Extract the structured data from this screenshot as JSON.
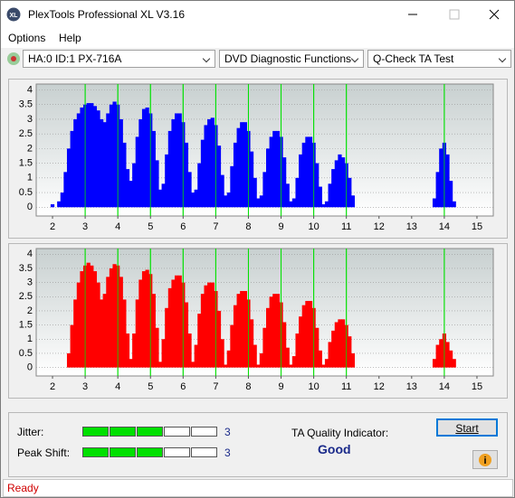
{
  "window": {
    "title": "PlexTools Professional XL V3.16"
  },
  "menu": [
    "Options",
    "Help"
  ],
  "toolbar": {
    "drive": "HA:0 ID:1  PX-716A",
    "function": "DVD Diagnostic Functions",
    "test": "Q-Check TA Test"
  },
  "charts": [
    {
      "type": "bar",
      "color": "#0000ff",
      "grid": true,
      "xlim": [
        1.5,
        15.5
      ],
      "ylim": [
        -0.3,
        4.2
      ],
      "xticks": [
        2,
        3,
        4,
        5,
        6,
        7,
        8,
        9,
        10,
        11,
        12,
        13,
        14,
        15
      ],
      "yticks": [
        0,
        0.5,
        1,
        1.5,
        2,
        2.5,
        3,
        3.5,
        4
      ],
      "reference_lines": [
        3,
        4,
        5,
        6,
        7,
        8,
        9,
        10,
        11,
        14
      ],
      "reference_color": "#00e000",
      "x": [
        1.9,
        2.0,
        2.1,
        2.2,
        2.3,
        2.4,
        2.5,
        2.6,
        2.7,
        2.8,
        2.9,
        3.0,
        3.1,
        3.2,
        3.3,
        3.4,
        3.5,
        3.6,
        3.7,
        3.8,
        3.9,
        4.0,
        4.1,
        4.2,
        4.3,
        4.4,
        4.5,
        4.6,
        4.7,
        4.8,
        4.9,
        5.0,
        5.1,
        5.2,
        5.3,
        5.4,
        5.5,
        5.6,
        5.7,
        5.8,
        5.9,
        6.0,
        6.1,
        6.2,
        6.3,
        6.4,
        6.5,
        6.6,
        6.7,
        6.8,
        6.9,
        7.0,
        7.1,
        7.2,
        7.3,
        7.4,
        7.5,
        7.6,
        7.7,
        7.8,
        7.9,
        8.0,
        8.1,
        8.2,
        8.3,
        8.4,
        8.5,
        8.6,
        8.7,
        8.8,
        8.9,
        9.0,
        9.1,
        9.2,
        9.3,
        9.4,
        9.5,
        9.6,
        9.7,
        9.8,
        9.9,
        10.0,
        10.1,
        10.2,
        10.3,
        10.4,
        10.5,
        10.6,
        10.7,
        10.8,
        10.9,
        11.0,
        11.1,
        11.2,
        11.3,
        11.4,
        11.5,
        11.6,
        11.7,
        11.8,
        11.9,
        12.0,
        12.1,
        12.2,
        12.3,
        12.4,
        12.5,
        12.6,
        12.7,
        12.8,
        12.9,
        13.0,
        13.1,
        13.2,
        13.3,
        13.4,
        13.5,
        13.6,
        13.7,
        13.8,
        13.9,
        14.0,
        14.1,
        14.2,
        14.3,
        14.4,
        14.5
      ],
      "values": [
        0,
        0.1,
        0,
        0.2,
        0.5,
        1.2,
        2.0,
        2.6,
        3.0,
        3.2,
        3.4,
        3.5,
        3.55,
        3.55,
        3.45,
        3.3,
        3.0,
        2.9,
        3.2,
        3.5,
        3.6,
        3.5,
        3.0,
        2.2,
        1.3,
        0.9,
        1.5,
        2.4,
        3.0,
        3.35,
        3.4,
        3.2,
        2.6,
        1.6,
        0.6,
        0.8,
        1.8,
        2.6,
        3.0,
        3.2,
        3.2,
        2.9,
        2.2,
        1.2,
        0.5,
        0.6,
        1.5,
        2.3,
        2.8,
        3.0,
        3.05,
        2.8,
        2.1,
        1.1,
        0.4,
        0.5,
        1.4,
        2.2,
        2.7,
        2.9,
        2.9,
        2.6,
        1.9,
        1.0,
        0.3,
        0.4,
        1.2,
        2.0,
        2.4,
        2.6,
        2.6,
        2.4,
        1.7,
        0.8,
        0.2,
        0.3,
        1.0,
        1.8,
        2.2,
        2.4,
        2.4,
        2.2,
        1.5,
        0.7,
        0.1,
        0.2,
        0.8,
        1.3,
        1.6,
        1.8,
        1.7,
        1.5,
        1.0,
        0.4,
        0,
        0,
        0,
        0,
        0,
        0,
        0,
        0,
        0,
        0,
        0,
        0,
        0,
        0,
        0,
        0,
        0,
        0,
        0,
        0,
        0,
        0,
        0,
        0,
        0.3,
        1.2,
        2.0,
        2.2,
        1.8,
        0.9,
        0.2,
        0,
        0
      ]
    },
    {
      "type": "bar",
      "color": "#ff0000",
      "grid": true,
      "xlim": [
        1.5,
        15.5
      ],
      "ylim": [
        -0.3,
        4.2
      ],
      "xticks": [
        2,
        3,
        4,
        5,
        6,
        7,
        8,
        9,
        10,
        11,
        12,
        13,
        14,
        15
      ],
      "yticks": [
        0,
        0.5,
        1,
        1.5,
        2,
        2.5,
        3,
        3.5,
        4
      ],
      "reference_lines": [
        3,
        4,
        5,
        6,
        7,
        8,
        9,
        10,
        11,
        14
      ],
      "reference_color": "#00e000",
      "x": [
        1.9,
        2.0,
        2.1,
        2.2,
        2.3,
        2.4,
        2.5,
        2.6,
        2.7,
        2.8,
        2.9,
        3.0,
        3.1,
        3.2,
        3.3,
        3.4,
        3.5,
        3.6,
        3.7,
        3.8,
        3.9,
        4.0,
        4.1,
        4.2,
        4.3,
        4.4,
        4.5,
        4.6,
        4.7,
        4.8,
        4.9,
        5.0,
        5.1,
        5.2,
        5.3,
        5.4,
        5.5,
        5.6,
        5.7,
        5.8,
        5.9,
        6.0,
        6.1,
        6.2,
        6.3,
        6.4,
        6.5,
        6.6,
        6.7,
        6.8,
        6.9,
        7.0,
        7.1,
        7.2,
        7.3,
        7.4,
        7.5,
        7.6,
        7.7,
        7.8,
        7.9,
        8.0,
        8.1,
        8.2,
        8.3,
        8.4,
        8.5,
        8.6,
        8.7,
        8.8,
        8.9,
        9.0,
        9.1,
        9.2,
        9.3,
        9.4,
        9.5,
        9.6,
        9.7,
        9.8,
        9.9,
        10.0,
        10.1,
        10.2,
        10.3,
        10.4,
        10.5,
        10.6,
        10.7,
        10.8,
        10.9,
        11.0,
        11.1,
        11.2,
        11.3,
        11.4,
        11.5,
        11.6,
        11.7,
        11.8,
        11.9,
        12.0,
        12.1,
        12.2,
        12.3,
        12.4,
        12.5,
        12.6,
        12.7,
        12.8,
        12.9,
        13.0,
        13.1,
        13.2,
        13.3,
        13.4,
        13.5,
        13.6,
        13.7,
        13.8,
        13.9,
        14.0,
        14.1,
        14.2,
        14.3,
        14.4,
        14.5
      ],
      "values": [
        0,
        0,
        0,
        0,
        0,
        0,
        0.5,
        1.5,
        2.4,
        3.0,
        3.4,
        3.6,
        3.7,
        3.6,
        3.4,
        3.0,
        2.4,
        2.6,
        3.2,
        3.5,
        3.65,
        3.6,
        3.2,
        2.4,
        1.2,
        0.3,
        1.2,
        2.4,
        3.1,
        3.4,
        3.45,
        3.3,
        2.6,
        1.4,
        0.2,
        1.0,
        2.1,
        2.8,
        3.1,
        3.25,
        3.25,
        3.0,
        2.3,
        1.2,
        0.2,
        0.8,
        1.9,
        2.6,
        2.9,
        3.0,
        3.0,
        2.7,
        2.0,
        1.0,
        0.1,
        0.6,
        1.5,
        2.2,
        2.6,
        2.7,
        2.7,
        2.4,
        1.7,
        0.8,
        0.1,
        0.5,
        1.4,
        2.1,
        2.5,
        2.6,
        2.6,
        2.3,
        1.6,
        0.7,
        0.1,
        0.4,
        1.2,
        1.8,
        2.2,
        2.35,
        2.35,
        2.1,
        1.4,
        0.6,
        0.1,
        0.3,
        0.9,
        1.3,
        1.6,
        1.7,
        1.7,
        1.5,
        1.1,
        0.5,
        0,
        0,
        0,
        0,
        0,
        0,
        0,
        0,
        0,
        0,
        0,
        0,
        0,
        0,
        0,
        0,
        0,
        0,
        0,
        0,
        0,
        0,
        0,
        0,
        0.3,
        0.8,
        1.0,
        1.2,
        0.9,
        0.6,
        0.3,
        0,
        0
      ]
    }
  ],
  "results": {
    "jitter": {
      "label": "Jitter:",
      "value": 3,
      "segments": 5
    },
    "peak_shift": {
      "label": "Peak Shift:",
      "value": 3,
      "segments": 5
    },
    "ta_quality": {
      "label": "TA Quality Indicator:",
      "value": "Good"
    }
  },
  "buttons": {
    "start": "Start"
  },
  "status": "Ready"
}
